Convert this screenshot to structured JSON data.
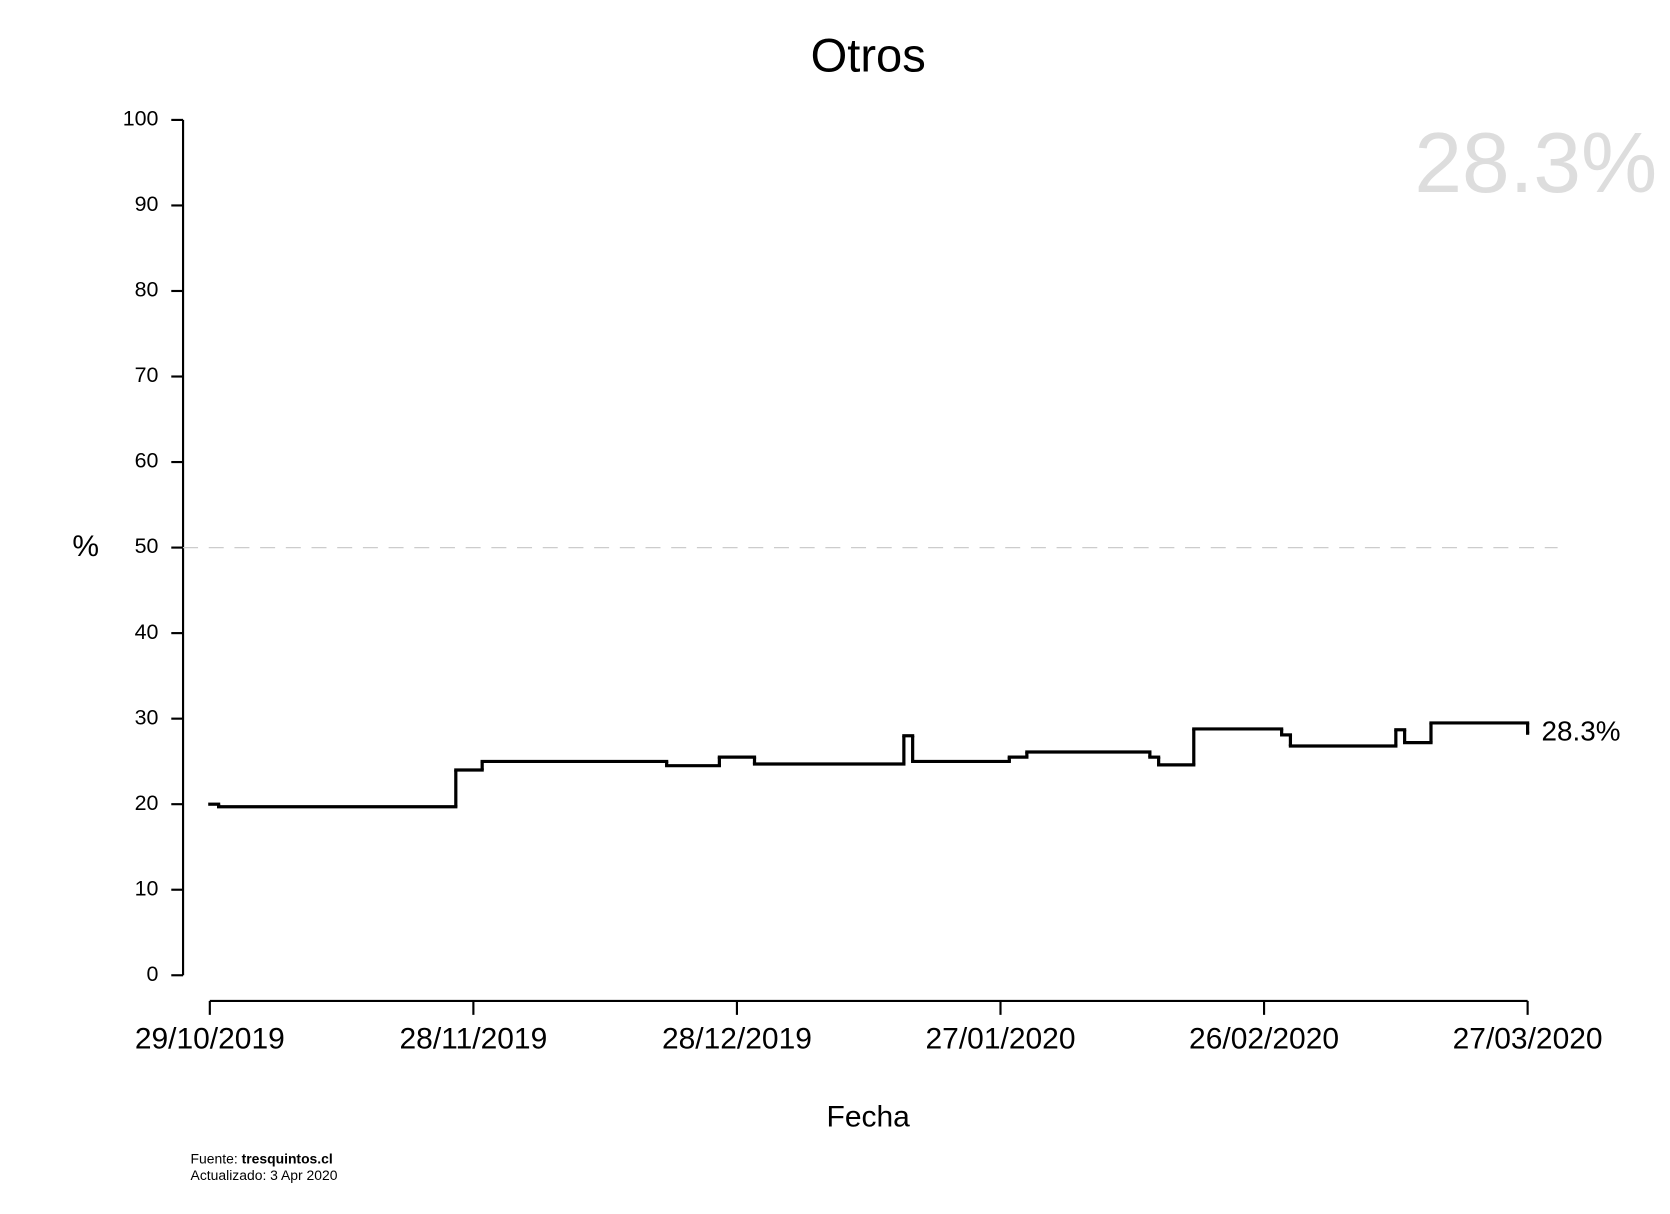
{
  "chart_data": {
    "type": "step",
    "title": "Otros",
    "x_label": "Fecha",
    "y_label": "%",
    "highlight_label": "28.3%",
    "end_label": "28.3%",
    "source_prefix": "Fuente: ",
    "source": "tresquintos.cl",
    "updated": "Actualizado: 3 Apr 2020",
    "color": "#000000",
    "hline": 50,
    "x": [
      "2019-10-29",
      "2019-10-30",
      "2019-11-26",
      "2019-11-29",
      "2019-12-20",
      "2019-12-26",
      "2019-12-30",
      "2020-01-16",
      "2020-01-17",
      "2020-01-28",
      "2020-01-30",
      "2020-02-13",
      "2020-02-14",
      "2020-02-18",
      "2020-02-28",
      "2020-02-29",
      "2020-03-12",
      "2020-03-13",
      "2020-03-16",
      "2020-03-27"
    ],
    "values": [
      20.0,
      19.7,
      24.0,
      25.0,
      24.5,
      25.5,
      24.7,
      28.0,
      25.0,
      25.5,
      26.1,
      25.5,
      24.6,
      28.8,
      28.1,
      26.8,
      28.7,
      27.2,
      29.5,
      28.3
    ],
    "xlim": [
      "2019-10-29",
      "2020-03-27"
    ],
    "xticks": [
      {
        "value": "2019-10-29",
        "label": "29/10/2019"
      },
      {
        "value": "2019-11-28",
        "label": "28/11/2019"
      },
      {
        "value": "2019-12-28",
        "label": "28/12/2019"
      },
      {
        "value": "2020-01-27",
        "label": "27/01/2020"
      },
      {
        "value": "2020-02-26",
        "label": "26/02/2020"
      },
      {
        "value": "2020-03-27",
        "label": "27/03/2020"
      }
    ],
    "ylim": [
      0,
      100
    ],
    "yticks": [
      0,
      10,
      20,
      30,
      40,
      50,
      60,
      70,
      80,
      90,
      100
    ]
  }
}
